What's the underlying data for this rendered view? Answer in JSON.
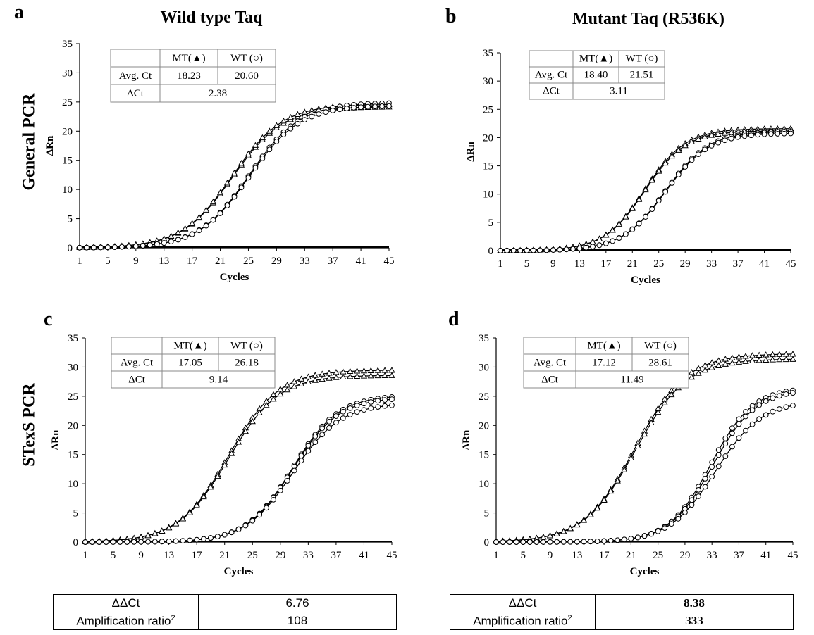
{
  "layout_labels": {
    "col_titles": [
      "Wild type Taq",
      "Mutant Taq (R536K)"
    ],
    "row_labels": [
      "General  PCR",
      "STexS PCR"
    ]
  },
  "summary_tables": [
    {
      "ddct_label": "ΔΔCt",
      "ddct_value": "6.76",
      "ratio_label": "Amplification ratio",
      "ratio_sup": "2",
      "ratio_value": "108"
    },
    {
      "ddct_label": "ΔΔCt",
      "ddct_value": "8.38",
      "ratio_label": "Amplification ratio",
      "ratio_sup": "2",
      "ratio_value": "333"
    }
  ],
  "chart_data": [
    {
      "panel": "a",
      "type": "line",
      "xlabel": "Cycles",
      "ylabel": "ΔRn",
      "xlim": [
        1,
        45
      ],
      "ylim": [
        0,
        35
      ],
      "xticks": [
        1,
        5,
        9,
        13,
        17,
        21,
        25,
        29,
        33,
        37,
        41,
        45
      ],
      "yticks": [
        0,
        5,
        10,
        15,
        20,
        25,
        30,
        35
      ],
      "series": [
        {
          "name": "MT(▲)",
          "marker": "triangle",
          "ct": 18.23,
          "plateau": 24.2,
          "slope": 3.6
        },
        {
          "name": "MT(▲)",
          "marker": "triangle",
          "ct": 18.2,
          "plateau": 24.6,
          "slope": 3.6
        },
        {
          "name": "WT (○)",
          "marker": "circle",
          "ct": 20.6,
          "plateau": 24.9,
          "slope": 3.6
        },
        {
          "name": "WT (○)",
          "marker": "circle",
          "ct": 20.6,
          "plateau": 24.4,
          "slope": 3.6
        }
      ],
      "table": {
        "headers": [
          "",
          "MT(▲)",
          "WT (○)"
        ],
        "avg_label": "Avg. Ct",
        "avg": [
          "18.23",
          "20.60"
        ],
        "dct_label": "ΔCt",
        "dct": "2.38"
      }
    },
    {
      "panel": "b",
      "type": "line",
      "xlabel": "Cycles",
      "ylabel": "ΔRn",
      "xlim": [
        1,
        45
      ],
      "ylim": [
        0,
        35
      ],
      "xticks": [
        1,
        5,
        9,
        13,
        17,
        21,
        25,
        29,
        33,
        37,
        41,
        45
      ],
      "yticks": [
        0,
        5,
        10,
        15,
        20,
        25,
        30,
        35
      ],
      "series": [
        {
          "name": "MT(▲)",
          "marker": "triangle",
          "ct": 18.4,
          "plateau": 21.6,
          "slope": 3.1
        },
        {
          "name": "MT(▲)",
          "marker": "triangle",
          "ct": 18.4,
          "plateau": 21.2,
          "slope": 3.1
        },
        {
          "name": "WT (○)",
          "marker": "circle",
          "ct": 21.5,
          "plateau": 21.1,
          "slope": 3.3
        },
        {
          "name": "WT (○)",
          "marker": "circle",
          "ct": 21.5,
          "plateau": 20.8,
          "slope": 3.3
        }
      ],
      "table": {
        "headers": [
          "",
          "MT(▲)",
          "WT (○)"
        ],
        "avg_label": "Avg. Ct",
        "avg": [
          "18.40",
          "21.51"
        ],
        "dct_label": "ΔCt",
        "dct": "3.11"
      }
    },
    {
      "panel": "c",
      "type": "line",
      "xlabel": "Cycles",
      "ylabel": "ΔRn",
      "xlim": [
        1,
        45
      ],
      "ylim": [
        0,
        35
      ],
      "xticks": [
        1,
        5,
        9,
        13,
        17,
        21,
        25,
        29,
        33,
        37,
        41,
        45
      ],
      "yticks": [
        0,
        5,
        10,
        15,
        20,
        25,
        30,
        35
      ],
      "series": [
        {
          "name": "MT(▲)",
          "marker": "triangle",
          "ct": 17.05,
          "plateau": 29.5,
          "slope": 3.6
        },
        {
          "name": "MT(▲)",
          "marker": "triangle",
          "ct": 17.05,
          "plateau": 28.6,
          "slope": 3.6
        },
        {
          "name": "WT (○)",
          "marker": "circle",
          "ct": 26.2,
          "plateau": 25.2,
          "slope": 3.3
        },
        {
          "name": "WT (○)",
          "marker": "circle",
          "ct": 26.2,
          "plateau": 24.8,
          "slope": 3.3
        },
        {
          "name": "WT (○)",
          "marker": "circle",
          "ct": 26.3,
          "plateau": 23.8,
          "slope": 3.4
        }
      ],
      "table": {
        "headers": [
          "",
          "MT(▲)",
          "WT (○)"
        ],
        "avg_label": "Avg. Ct",
        "avg": [
          "17.05",
          "26.18"
        ],
        "dct_label": "ΔCt",
        "dct": "9.14"
      }
    },
    {
      "panel": "d",
      "type": "line",
      "xlabel": "Cycles",
      "ylabel": "ΔRn",
      "xlim": [
        1,
        45
      ],
      "ylim": [
        0,
        35
      ],
      "xticks": [
        1,
        5,
        9,
        13,
        17,
        21,
        25,
        29,
        33,
        37,
        41,
        45
      ],
      "yticks": [
        0,
        5,
        10,
        15,
        20,
        25,
        30,
        35
      ],
      "series": [
        {
          "name": "MT(▲)",
          "marker": "triangle",
          "ct": 17.12,
          "plateau": 32.3,
          "slope": 3.8
        },
        {
          "name": "MT(▲)",
          "marker": "triangle",
          "ct": 17.12,
          "plateau": 31.4,
          "slope": 3.8
        },
        {
          "name": "WT (○)",
          "marker": "circle",
          "ct": 28.3,
          "plateau": 26.5,
          "slope": 3.1
        },
        {
          "name": "WT (○)",
          "marker": "circle",
          "ct": 28.6,
          "plateau": 26.2,
          "slope": 3.2
        },
        {
          "name": "WT (○)",
          "marker": "circle",
          "ct": 29.0,
          "plateau": 24.2,
          "slope": 3.4
        }
      ],
      "table": {
        "headers": [
          "",
          "MT(▲)",
          "WT (○)"
        ],
        "avg_label": "Avg. Ct",
        "avg": [
          "17.12",
          "28.61"
        ],
        "dct_label": "ΔCt",
        "dct": "11.49"
      }
    }
  ]
}
